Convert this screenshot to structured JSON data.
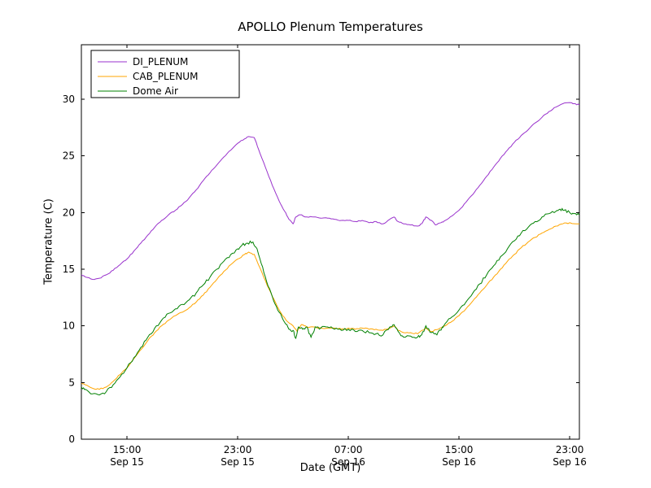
{
  "chart_data": {
    "type": "line",
    "title": "APOLLO Plenum Temperatures",
    "xlabel": "Date (GMT)",
    "ylabel": "Temperature (C)",
    "xlim_hours": [
      11.7,
      47.7
    ],
    "ylim": [
      0,
      34.8
    ],
    "y_ticks": [
      0,
      5,
      10,
      15,
      20,
      25,
      30
    ],
    "x_ticks": [
      {
        "hour": 15,
        "time": "15:00",
        "date": "Sep 15"
      },
      {
        "hour": 23,
        "time": "23:00",
        "date": "Sep 15"
      },
      {
        "hour": 31,
        "time": "07:00",
        "date": "Sep 16"
      },
      {
        "hour": 39,
        "time": "15:00",
        "date": "Sep 16"
      },
      {
        "hour": 47,
        "time": "23:00",
        "date": "Sep 16"
      }
    ],
    "legend": {
      "position": "upper-left",
      "entries": [
        "DI_PLENUM",
        "CAB_PLENUM",
        "Dome Air"
      ]
    },
    "grid": false,
    "series": [
      {
        "name": "DI_PLENUM",
        "color": "#9932cc",
        "jitter": 0.05,
        "points": [
          [
            11.7,
            14.5
          ],
          [
            12,
            14.3
          ],
          [
            12.5,
            14.1
          ],
          [
            13,
            14.2
          ],
          [
            13.5,
            14.5
          ],
          [
            14,
            14.9
          ],
          [
            14.5,
            15.4
          ],
          [
            15,
            15.9
          ],
          [
            15.5,
            16.6
          ],
          [
            16,
            17.3
          ],
          [
            16.5,
            18.0
          ],
          [
            17,
            18.7
          ],
          [
            17.5,
            19.3
          ],
          [
            18,
            19.8
          ],
          [
            18.5,
            20.2
          ],
          [
            19,
            20.7
          ],
          [
            19.5,
            21.3
          ],
          [
            20,
            22.0
          ],
          [
            20.5,
            22.8
          ],
          [
            21,
            23.5
          ],
          [
            21.5,
            24.2
          ],
          [
            22,
            24.9
          ],
          [
            22.5,
            25.5
          ],
          [
            23,
            26.1
          ],
          [
            23.5,
            26.5
          ],
          [
            23.8,
            26.7
          ],
          [
            24.2,
            26.6
          ],
          [
            24.5,
            25.6
          ],
          [
            25,
            24.0
          ],
          [
            25.5,
            22.4
          ],
          [
            26,
            21.0
          ],
          [
            26.4,
            20.1
          ],
          [
            26.7,
            19.4
          ],
          [
            27,
            19.0
          ],
          [
            27.2,
            19.6
          ],
          [
            27.5,
            19.8
          ],
          [
            28,
            19.6
          ],
          [
            28.5,
            19.6
          ],
          [
            29,
            19.5
          ],
          [
            29.5,
            19.5
          ],
          [
            30,
            19.4
          ],
          [
            30.5,
            19.3
          ],
          [
            31,
            19.3
          ],
          [
            31.5,
            19.2
          ],
          [
            32,
            19.3
          ],
          [
            32.5,
            19.1
          ],
          [
            33,
            19.2
          ],
          [
            33.5,
            19.0
          ],
          [
            34,
            19.4
          ],
          [
            34.3,
            19.6
          ],
          [
            34.6,
            19.2
          ],
          [
            35,
            19.0
          ],
          [
            35.5,
            18.9
          ],
          [
            36,
            18.8
          ],
          [
            36.3,
            19.0
          ],
          [
            36.6,
            19.6
          ],
          [
            37,
            19.3
          ],
          [
            37.3,
            18.9
          ],
          [
            37.7,
            19.1
          ],
          [
            38,
            19.3
          ],
          [
            38.5,
            19.7
          ],
          [
            39,
            20.2
          ],
          [
            39.5,
            20.9
          ],
          [
            40,
            21.6
          ],
          [
            40.5,
            22.4
          ],
          [
            41,
            23.2
          ],
          [
            41.5,
            24.0
          ],
          [
            42,
            24.8
          ],
          [
            42.5,
            25.5
          ],
          [
            43,
            26.2
          ],
          [
            43.5,
            26.8
          ],
          [
            44,
            27.3
          ],
          [
            44.5,
            27.9
          ],
          [
            45,
            28.4
          ],
          [
            45.5,
            28.9
          ],
          [
            46,
            29.3
          ],
          [
            46.5,
            29.6
          ],
          [
            47,
            29.7
          ],
          [
            47.3,
            29.6
          ],
          [
            47.7,
            29.5
          ]
        ]
      },
      {
        "name": "CAB_PLENUM",
        "color": "#ffa500",
        "jitter": 0.06,
        "points": [
          [
            11.7,
            4.9
          ],
          [
            12,
            4.8
          ],
          [
            12.5,
            4.5
          ],
          [
            13,
            4.4
          ],
          [
            13.5,
            4.6
          ],
          [
            14,
            5.1
          ],
          [
            14.5,
            5.7
          ],
          [
            15,
            6.3
          ],
          [
            15.5,
            7.1
          ],
          [
            16,
            7.9
          ],
          [
            16.5,
            8.7
          ],
          [
            17,
            9.4
          ],
          [
            17.5,
            10.0
          ],
          [
            18,
            10.5
          ],
          [
            18.5,
            10.9
          ],
          [
            19,
            11.2
          ],
          [
            19.5,
            11.6
          ],
          [
            20,
            12.1
          ],
          [
            20.5,
            12.7
          ],
          [
            21,
            13.4
          ],
          [
            21.5,
            14.1
          ],
          [
            22,
            14.8
          ],
          [
            22.5,
            15.4
          ],
          [
            23,
            15.9
          ],
          [
            23.5,
            16.3
          ],
          [
            23.8,
            16.5
          ],
          [
            24.2,
            16.3
          ],
          [
            24.5,
            15.4
          ],
          [
            25,
            14.0
          ],
          [
            25.5,
            12.6
          ],
          [
            26,
            11.4
          ],
          [
            26.5,
            10.5
          ],
          [
            27,
            10.0
          ],
          [
            27.3,
            9.5
          ],
          [
            27.6,
            10.1
          ],
          [
            28,
            9.9
          ],
          [
            28.5,
            9.9
          ],
          [
            29,
            9.8
          ],
          [
            29.5,
            9.8
          ],
          [
            30,
            9.8
          ],
          [
            30.5,
            9.7
          ],
          [
            31,
            9.8
          ],
          [
            31.5,
            9.7
          ],
          [
            32,
            9.8
          ],
          [
            32.5,
            9.7
          ],
          [
            33,
            9.7
          ],
          [
            33.5,
            9.6
          ],
          [
            34,
            9.8
          ],
          [
            34.3,
            10.0
          ],
          [
            34.6,
            9.6
          ],
          [
            35,
            9.4
          ],
          [
            35.5,
            9.4
          ],
          [
            36,
            9.3
          ],
          [
            36.6,
            9.8
          ],
          [
            37,
            9.5
          ],
          [
            37.5,
            9.7
          ],
          [
            38,
            10.0
          ],
          [
            38.5,
            10.4
          ],
          [
            39,
            10.9
          ],
          [
            39.5,
            11.5
          ],
          [
            40,
            12.2
          ],
          [
            40.5,
            12.9
          ],
          [
            41,
            13.6
          ],
          [
            41.5,
            14.3
          ],
          [
            42,
            15.0
          ],
          [
            42.5,
            15.7
          ],
          [
            43,
            16.3
          ],
          [
            43.5,
            16.9
          ],
          [
            44,
            17.4
          ],
          [
            44.5,
            17.8
          ],
          [
            45,
            18.2
          ],
          [
            45.5,
            18.5
          ],
          [
            46,
            18.8
          ],
          [
            46.5,
            19.0
          ],
          [
            47,
            19.1
          ],
          [
            47.7,
            19.0
          ]
        ]
      },
      {
        "name": "Dome Air",
        "color": "#008000",
        "jitter": 0.13,
        "points": [
          [
            11.7,
            4.6
          ],
          [
            12,
            4.4
          ],
          [
            12.5,
            4.0
          ],
          [
            13,
            3.9
          ],
          [
            13.5,
            4.2
          ],
          [
            14,
            4.8
          ],
          [
            14.5,
            5.5
          ],
          [
            15,
            6.3
          ],
          [
            15.5,
            7.2
          ],
          [
            16,
            8.1
          ],
          [
            16.5,
            9.0
          ],
          [
            17,
            9.8
          ],
          [
            17.5,
            10.5
          ],
          [
            18,
            11.1
          ],
          [
            18.5,
            11.5
          ],
          [
            19,
            11.9
          ],
          [
            19.5,
            12.3
          ],
          [
            20,
            12.9
          ],
          [
            20.5,
            13.6
          ],
          [
            21,
            14.3
          ],
          [
            21.5,
            15.0
          ],
          [
            22,
            15.7
          ],
          [
            22.5,
            16.3
          ],
          [
            23,
            16.8
          ],
          [
            23.3,
            17.1
          ],
          [
            23.7,
            17.3
          ],
          [
            24.1,
            17.4
          ],
          [
            24.4,
            16.8
          ],
          [
            24.8,
            15.2
          ],
          [
            25.2,
            13.5
          ],
          [
            25.6,
            12.2
          ],
          [
            26,
            11.2
          ],
          [
            26.4,
            10.3
          ],
          [
            26.7,
            9.7
          ],
          [
            27,
            9.6
          ],
          [
            27.2,
            8.9
          ],
          [
            27.4,
            9.9
          ],
          [
            27.7,
            9.7
          ],
          [
            28,
            9.9
          ],
          [
            28.3,
            9.0
          ],
          [
            28.6,
            9.9
          ],
          [
            29,
            9.8
          ],
          [
            29.5,
            9.9
          ],
          [
            30,
            9.7
          ],
          [
            30.5,
            9.6
          ],
          [
            31,
            9.7
          ],
          [
            31.5,
            9.5
          ],
          [
            32,
            9.6
          ],
          [
            32.5,
            9.4
          ],
          [
            33,
            9.3
          ],
          [
            33.5,
            9.2
          ],
          [
            34,
            9.9
          ],
          [
            34.3,
            10.1
          ],
          [
            34.6,
            9.5
          ],
          [
            35,
            9.0
          ],
          [
            35.5,
            9.1
          ],
          [
            36,
            9.0
          ],
          [
            36.3,
            9.2
          ],
          [
            36.6,
            10.0
          ],
          [
            37,
            9.4
          ],
          [
            37.4,
            9.2
          ],
          [
            37.8,
            9.9
          ],
          [
            38,
            10.2
          ],
          [
            38.5,
            10.8
          ],
          [
            39,
            11.4
          ],
          [
            39.5,
            12.1
          ],
          [
            40,
            12.9
          ],
          [
            40.5,
            13.7
          ],
          [
            41,
            14.5
          ],
          [
            41.5,
            15.3
          ],
          [
            42,
            16.1
          ],
          [
            42.5,
            16.8
          ],
          [
            43,
            17.5
          ],
          [
            43.5,
            18.2
          ],
          [
            44,
            18.7
          ],
          [
            44.5,
            19.2
          ],
          [
            45,
            19.6
          ],
          [
            45.5,
            19.9
          ],
          [
            46,
            20.1
          ],
          [
            46.3,
            20.3
          ],
          [
            46.6,
            20.2
          ],
          [
            47,
            20.0
          ],
          [
            47.3,
            19.9
          ],
          [
            47.7,
            19.8
          ]
        ]
      }
    ]
  }
}
